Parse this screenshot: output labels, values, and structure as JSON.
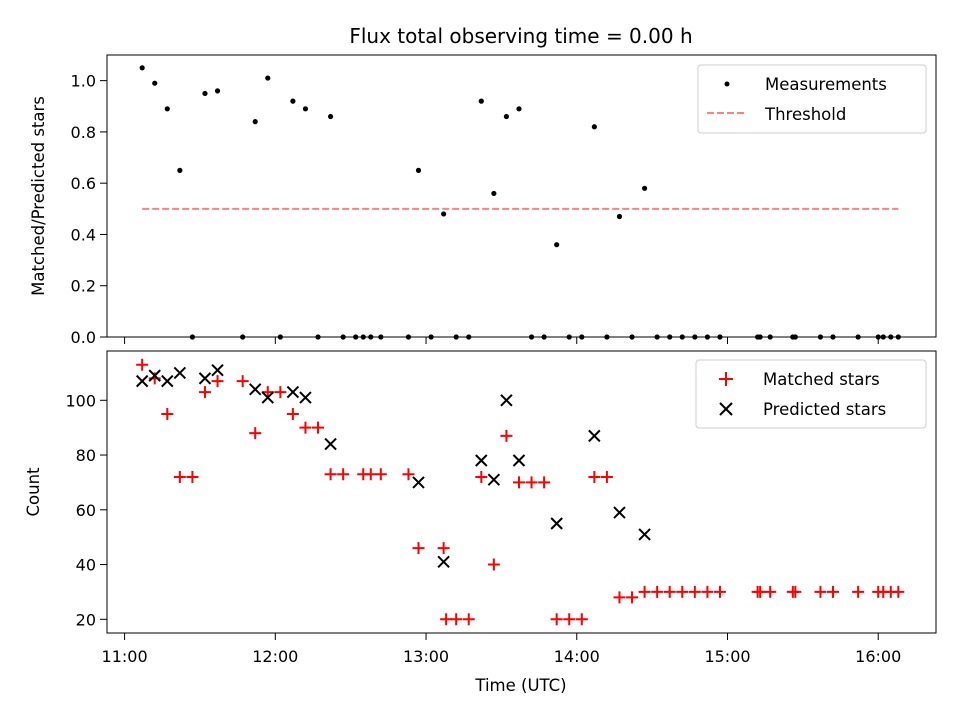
{
  "chart_data": {
    "title": "Flux total observing time = 0.00 h",
    "xlabel": "Time (UTC)",
    "x_ticks": [
      "11:00",
      "12:00",
      "13:00",
      "14:00",
      "15:00",
      "16:00"
    ],
    "xlim": [
      "10:53",
      "16:23"
    ],
    "panels": [
      {
        "type": "scatter",
        "ylabel": "Matched/Predicted stars",
        "ylim": [
          0,
          1.1
        ],
        "y_ticks": [
          "0.0",
          "0.2",
          "0.4",
          "0.6",
          "0.8",
          "1.0"
        ],
        "legend_position": "top-right",
        "series": [
          {
            "name": "Measurements",
            "marker": "dot",
            "color": "#000000",
            "points": [
              [
                "11:07",
                1.05
              ],
              [
                "11:12",
                0.99
              ],
              [
                "11:17",
                0.89
              ],
              [
                "11:22",
                0.65
              ],
              [
                "11:27",
                0.0
              ],
              [
                "11:32",
                0.95
              ],
              [
                "11:37",
                0.96
              ],
              [
                "11:47",
                0.0
              ],
              [
                "11:52",
                0.84
              ],
              [
                "11:57",
                1.01
              ],
              [
                "12:02",
                0.0
              ],
              [
                "12:07",
                0.92
              ],
              [
                "12:12",
                0.89
              ],
              [
                "12:17",
                0.0
              ],
              [
                "12:22",
                0.86
              ],
              [
                "12:27",
                0.0
              ],
              [
                "12:32",
                0.0
              ],
              [
                "12:35",
                0.0
              ],
              [
                "12:38",
                0.0
              ],
              [
                "12:42",
                0.0
              ],
              [
                "12:53",
                0.0
              ],
              [
                "12:57",
                0.65
              ],
              [
                "13:02",
                0.0
              ],
              [
                "13:07",
                0.48
              ],
              [
                "13:12",
                0.0
              ],
              [
                "13:17",
                0.0
              ],
              [
                "13:22",
                0.92
              ],
              [
                "13:27",
                0.56
              ],
              [
                "13:32",
                0.86
              ],
              [
                "13:37",
                0.89
              ],
              [
                "13:42",
                0.0
              ],
              [
                "13:47",
                0.0
              ],
              [
                "13:52",
                0.36
              ],
              [
                "13:57",
                0.0
              ],
              [
                "14:02",
                0.0
              ],
              [
                "14:07",
                0.82
              ],
              [
                "14:12",
                0.0
              ],
              [
                "14:17",
                0.47
              ],
              [
                "14:22",
                0.0
              ],
              [
                "14:27",
                0.58
              ],
              [
                "14:32",
                0.0
              ],
              [
                "14:37",
                0.0
              ],
              [
                "14:42",
                0.0
              ],
              [
                "14:47",
                0.0
              ],
              [
                "14:52",
                0.0
              ],
              [
                "14:57",
                0.0
              ],
              [
                "15:12",
                0.0
              ],
              [
                "15:13",
                0.0
              ],
              [
                "15:17",
                0.0
              ],
              [
                "15:26",
                0.0
              ],
              [
                "15:27",
                0.0
              ],
              [
                "15:37",
                0.0
              ],
              [
                "15:42",
                0.0
              ],
              [
                "15:52",
                0.0
              ],
              [
                "16:00",
                0.0
              ],
              [
                "16:02",
                0.0
              ],
              [
                "16:05",
                0.0
              ],
              [
                "16:08",
                0.0
              ]
            ]
          },
          {
            "name": "Threshold",
            "type": "line",
            "style": "dashed",
            "color": "#ff8080",
            "points": [
              [
                "11:07",
                0.5
              ],
              [
                "16:08",
                0.5
              ]
            ]
          }
        ]
      },
      {
        "type": "scatter",
        "ylabel": "Count",
        "ylim": [
          15,
          118
        ],
        "y_ticks": [
          "20",
          "40",
          "60",
          "80",
          "100"
        ],
        "legend_position": "top-right",
        "series": [
          {
            "name": "Matched stars",
            "marker": "plus",
            "color": "#ff0000",
            "points": [
              [
                "11:07",
                113
              ],
              [
                "11:12",
                108
              ],
              [
                "11:17",
                95
              ],
              [
                "11:22",
                72
              ],
              [
                "11:27",
                72
              ],
              [
                "11:32",
                103
              ],
              [
                "11:37",
                107
              ],
              [
                "11:47",
                107
              ],
              [
                "11:52",
                88
              ],
              [
                "11:57",
                103
              ],
              [
                "12:02",
                103
              ],
              [
                "12:07",
                95
              ],
              [
                "12:12",
                90
              ],
              [
                "12:17",
                90
              ],
              [
                "12:22",
                73
              ],
              [
                "12:27",
                73
              ],
              [
                "12:35",
                73
              ],
              [
                "12:38",
                73
              ],
              [
                "12:42",
                73
              ],
              [
                "12:53",
                73
              ],
              [
                "12:57",
                46
              ],
              [
                "13:07",
                46
              ],
              [
                "13:08",
                20
              ],
              [
                "13:12",
                20
              ],
              [
                "13:17",
                20
              ],
              [
                "13:22",
                72
              ],
              [
                "13:27",
                40
              ],
              [
                "13:32",
                87
              ],
              [
                "13:37",
                70
              ],
              [
                "13:42",
                70
              ],
              [
                "13:47",
                70
              ],
              [
                "13:52",
                20
              ],
              [
                "13:57",
                20
              ],
              [
                "14:02",
                20
              ],
              [
                "14:07",
                72
              ],
              [
                "14:12",
                72
              ],
              [
                "14:17",
                28
              ],
              [
                "14:22",
                28
              ],
              [
                "14:27",
                30
              ],
              [
                "14:32",
                30
              ],
              [
                "14:37",
                30
              ],
              [
                "14:42",
                30
              ],
              [
                "14:47",
                30
              ],
              [
                "14:52",
                30
              ],
              [
                "14:57",
                30
              ],
              [
                "15:12",
                30
              ],
              [
                "15:13",
                30
              ],
              [
                "15:17",
                30
              ],
              [
                "15:26",
                30
              ],
              [
                "15:27",
                30
              ],
              [
                "15:37",
                30
              ],
              [
                "15:42",
                30
              ],
              [
                "15:52",
                30
              ],
              [
                "16:00",
                30
              ],
              [
                "16:02",
                30
              ],
              [
                "16:05",
                30
              ],
              [
                "16:08",
                30
              ]
            ]
          },
          {
            "name": "Predicted stars",
            "marker": "x",
            "color": "#000000",
            "points": [
              [
                "11:07",
                107
              ],
              [
                "11:12",
                109
              ],
              [
                "11:17",
                107
              ],
              [
                "11:22",
                110
              ],
              [
                "11:32",
                108
              ],
              [
                "11:37",
                111
              ],
              [
                "11:52",
                104
              ],
              [
                "11:57",
                101
              ],
              [
                "12:07",
                103
              ],
              [
                "12:12",
                101
              ],
              [
                "12:22",
                84
              ],
              [
                "12:57",
                70
              ],
              [
                "13:07",
                41
              ],
              [
                "13:22",
                78
              ],
              [
                "13:27",
                71
              ],
              [
                "13:32",
                100
              ],
              [
                "13:37",
                78
              ],
              [
                "13:52",
                55
              ],
              [
                "14:07",
                87
              ],
              [
                "14:17",
                59
              ],
              [
                "14:27",
                51
              ]
            ]
          }
        ]
      }
    ]
  }
}
